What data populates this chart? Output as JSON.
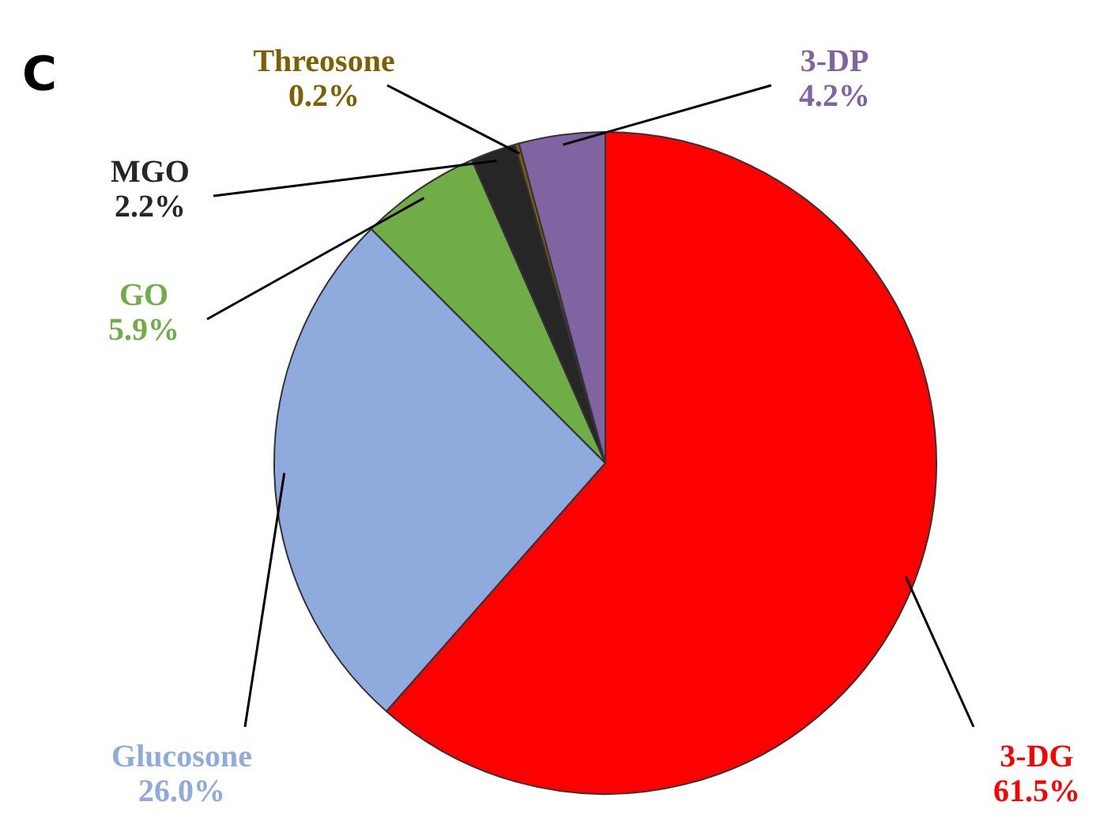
{
  "chart_data": {
    "type": "pie",
    "title": "C",
    "categories": [
      "3-DG",
      "Glucosone",
      "GO",
      "MGO",
      "Threosone",
      "3-DP"
    ],
    "values": [
      61.5,
      26.0,
      5.9,
      2.2,
      0.2,
      4.2
    ],
    "colors": [
      "#ff0000",
      "#8faadc",
      "#70ad47",
      "#262626",
      "#7f6000",
      "#8064a2"
    ],
    "value_labels": [
      "61.5%",
      "26.0%",
      "5.9%",
      "2.2%",
      "0.2%",
      "4.2%"
    ],
    "legend": false
  }
}
